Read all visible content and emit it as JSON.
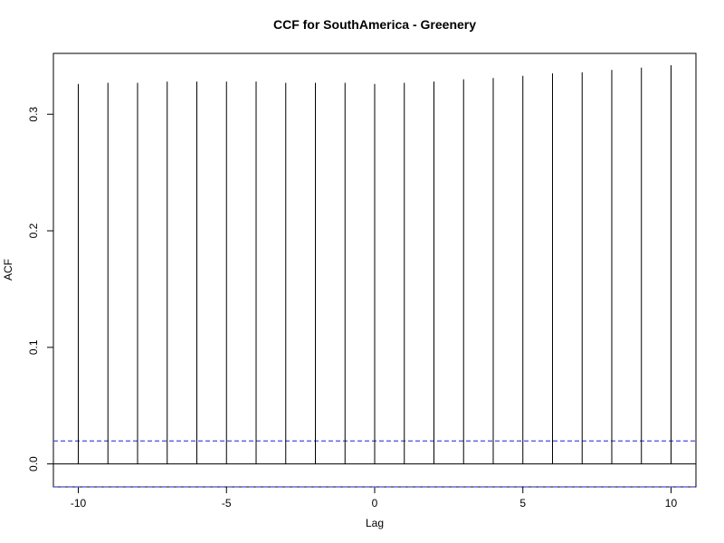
{
  "chart_data": {
    "type": "bar",
    "title": "CCF for SouthAmerica - Greenery",
    "xlabel": "Lag",
    "ylabel": "ACF",
    "x": [
      -10,
      -9,
      -8,
      -7,
      -6,
      -5,
      -4,
      -3,
      -2,
      -1,
      0,
      1,
      2,
      3,
      4,
      5,
      6,
      7,
      8,
      9,
      10
    ],
    "values": [
      0.326,
      0.327,
      0.327,
      0.328,
      0.328,
      0.328,
      0.328,
      0.327,
      0.327,
      0.327,
      0.326,
      0.327,
      0.328,
      0.33,
      0.331,
      0.333,
      0.335,
      0.336,
      0.338,
      0.34,
      0.342
    ],
    "xlim": [
      -10.84,
      10.84
    ],
    "ylim": [
      -0.0197,
      0.3522
    ],
    "xticks": [
      -10,
      -5,
      0,
      5,
      10
    ],
    "xtick_labels": [
      "-10",
      "-5",
      "0",
      "5",
      "10"
    ],
    "yticks": [
      0.0,
      0.1,
      0.2,
      0.3
    ],
    "ytick_labels": [
      "0.0",
      "0.1",
      "0.2",
      "0.3"
    ],
    "confidence_bounds": [
      0.0197,
      -0.0197
    ],
    "zero_line": 0,
    "grid": false,
    "colors": {
      "spikes": "#000000",
      "bounds": "#4a4ae6",
      "frame": "#000000"
    }
  }
}
